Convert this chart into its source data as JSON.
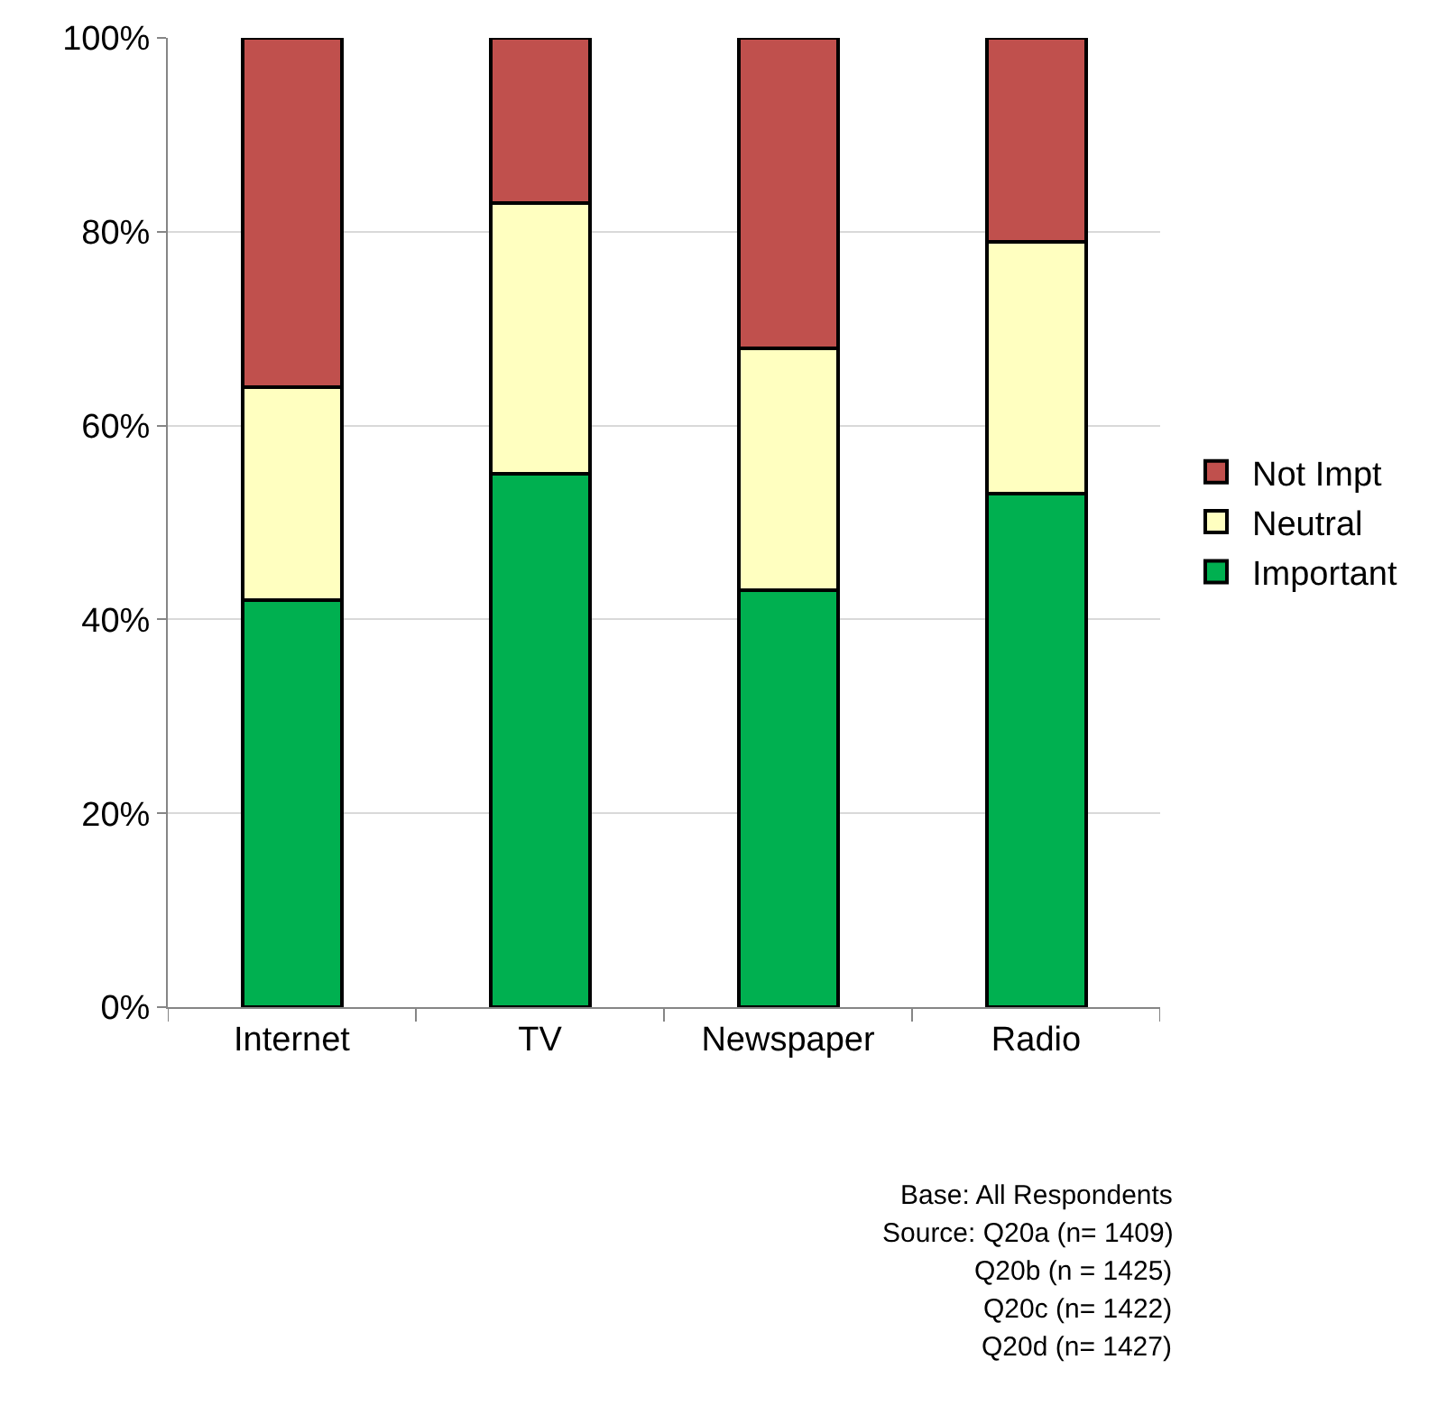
{
  "chart_data": {
    "type": "bar",
    "stacked": true,
    "categories": [
      "Internet",
      "TV",
      "Newspaper",
      "Radio"
    ],
    "series": [
      {
        "name": "Important",
        "color": "#00b050",
        "values": [
          42,
          55,
          43,
          53
        ]
      },
      {
        "name": "Neutral",
        "color": "#ffffc0",
        "values": [
          22,
          28,
          25,
          26
        ]
      },
      {
        "name": "Not Impt",
        "color": "#c0504d",
        "values": [
          36,
          17,
          32,
          21
        ]
      }
    ],
    "ylim": [
      0,
      100
    ],
    "yticks": [
      {
        "value": 0,
        "label": "0%"
      },
      {
        "value": 20,
        "label": "20%"
      },
      {
        "value": 40,
        "label": "40%"
      },
      {
        "value": 60,
        "label": "60%"
      },
      {
        "value": 80,
        "label": "80%"
      },
      {
        "value": 100,
        "label": "100%"
      }
    ],
    "grid": "y",
    "legend": "right",
    "annotations": [
      "Base: All Respondents",
      "Source: Q20a (n= 1409)",
      "Q20b (n = 1425)",
      "Q20c (n= 1422)",
      "Q20d (n= 1427)"
    ]
  }
}
